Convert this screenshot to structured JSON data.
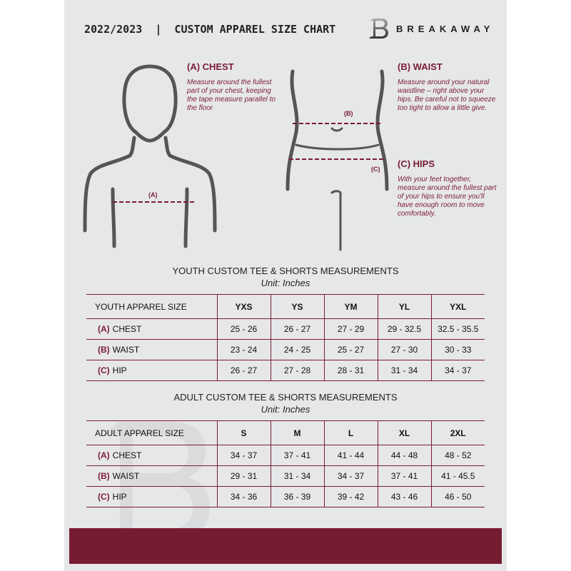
{
  "header": {
    "title": "2022/2023  |  CUSTOM APPAREL SIZE CHART",
    "brand": "BREAKAWAY",
    "logo_letter": "B"
  },
  "colors": {
    "accent": "#761c31",
    "background": "#e6e7e9"
  },
  "chest": {
    "heading": "(A) CHEST",
    "marker": "(A)",
    "description": "Measure around the fullest part of your chest, keeping the tape measure parallel to the floor"
  },
  "waist": {
    "heading": "(B) WAIST",
    "marker": "(B)",
    "description": "Measure around your natural waistline – right above your hips. Be careful not to squeeze too tight to allow a little give."
  },
  "hips": {
    "heading": "(C) HIPS",
    "marker": "(C)",
    "description": "With your feet together, measure around the fullest part of your hips to ensure you'll have enough room to move comfortably."
  },
  "youth": {
    "title": "YOUTH CUSTOM TEE & SHORTS MEASUREMENTS",
    "unit": "Unit: Inches",
    "size_header": "YOUTH APPAREL SIZE",
    "sizes": [
      "YXS",
      "YS",
      "YM",
      "YL",
      "YXL"
    ],
    "rows": [
      {
        "letter": "(A)",
        "label": "CHEST",
        "values": [
          "25 - 26",
          "26 - 27",
          "27 - 29",
          "29 - 32.5",
          "32.5 - 35.5"
        ]
      },
      {
        "letter": "(B)",
        "label": "WAIST",
        "values": [
          "23 - 24",
          "24 - 25",
          "25 - 27",
          "27 - 30",
          "30 - 33"
        ]
      },
      {
        "letter": "(C)",
        "label": "HIP",
        "values": [
          "26 - 27",
          "27 - 28",
          "28 - 31",
          "31 - 34",
          "34 - 37"
        ]
      }
    ]
  },
  "adult": {
    "title": "ADULT CUSTOM TEE & SHORTS MEASUREMENTS",
    "unit": "Unit: Inches",
    "size_header": "ADULT APPAREL SIZE",
    "sizes": [
      "S",
      "M",
      "L",
      "XL",
      "2XL"
    ],
    "rows": [
      {
        "letter": "(A)",
        "label": "CHEST",
        "values": [
          "34 - 37",
          "37 - 41",
          "41 - 44",
          "44 - 48",
          "48 - 52"
        ]
      },
      {
        "letter": "(B)",
        "label": "WAIST",
        "values": [
          "29 - 31",
          "31 - 34",
          "34 - 37",
          "37 - 41",
          "41 - 45.5"
        ]
      },
      {
        "letter": "(C)",
        "label": "HIP",
        "values": [
          "34 - 36",
          "36 - 39",
          "39 - 42",
          "43 - 46",
          "46 - 50"
        ]
      }
    ]
  }
}
